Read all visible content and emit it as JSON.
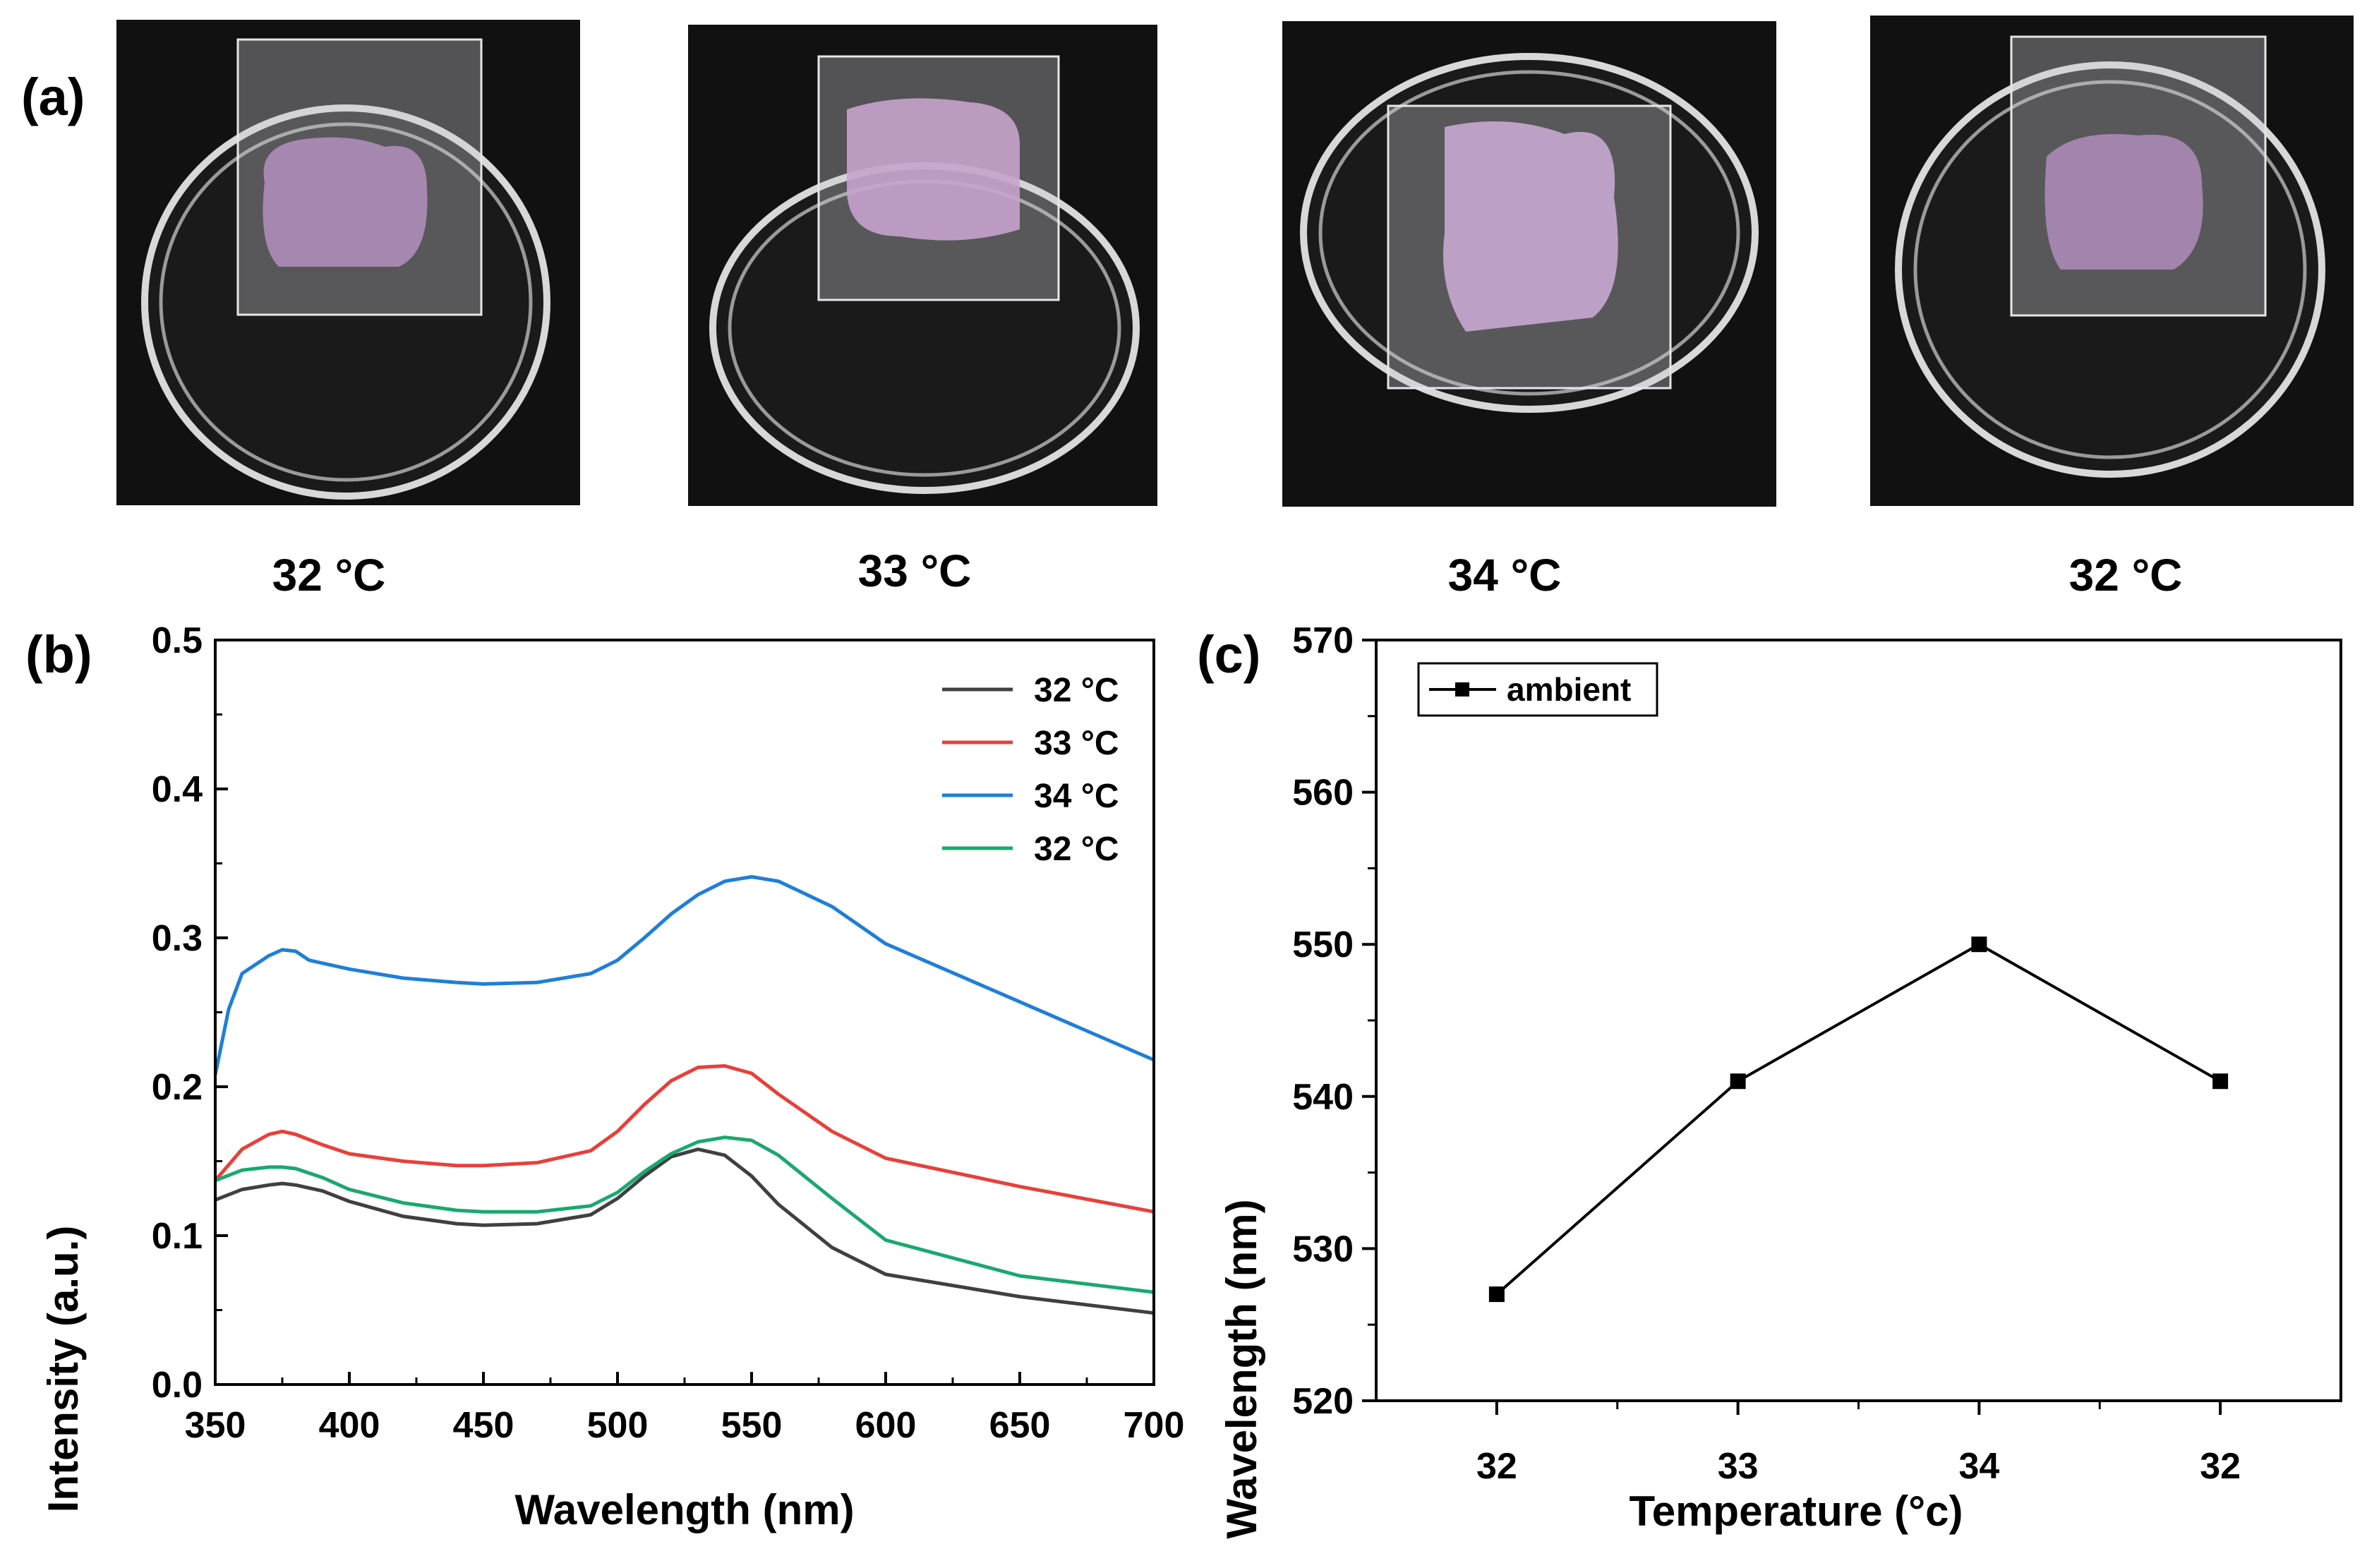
{
  "panel_a": {
    "label": "(a)",
    "photos": [
      {
        "caption": "32 °C"
      },
      {
        "caption": "33 °C"
      },
      {
        "caption": "34 °C"
      },
      {
        "caption": "32 °C"
      }
    ]
  },
  "panel_b": {
    "label": "(b)"
  },
  "panel_c": {
    "label": "(c)"
  },
  "colors": {
    "series_32": "#404040",
    "series_33": "#e8403a",
    "series_34": "#1e7fd8",
    "series_32b": "#1aa86e",
    "line_c": "#000000",
    "film": "#c9a9cf",
    "background_photo": "#111111"
  },
  "chart_data": [
    {
      "type": "line",
      "xlabel": "Wavelength (nm)",
      "ylabel": "Intensity (a.u.)",
      "xlim": [
        350,
        700
      ],
      "ylim": [
        0.0,
        0.5
      ],
      "xticks": [
        "350",
        "400",
        "450",
        "500",
        "550",
        "600",
        "650",
        "700"
      ],
      "yticks": [
        "0.0",
        "0.1",
        "0.2",
        "0.3",
        "0.4",
        "0.5"
      ],
      "legend_position": "top-right",
      "series": [
        {
          "name": "32 °C",
          "x": [
            350,
            360,
            370,
            375,
            380,
            390,
            400,
            420,
            440,
            450,
            470,
            490,
            500,
            510,
            520,
            530,
            540,
            550,
            560,
            580,
            600,
            650,
            700
          ],
          "y": [
            0.124,
            0.131,
            0.134,
            0.135,
            0.134,
            0.13,
            0.123,
            0.113,
            0.108,
            0.107,
            0.108,
            0.114,
            0.125,
            0.14,
            0.153,
            0.158,
            0.154,
            0.14,
            0.121,
            0.092,
            0.074,
            0.059,
            0.048
          ]
        },
        {
          "name": "33 °C",
          "x": [
            350,
            360,
            370,
            375,
            380,
            390,
            400,
            420,
            440,
            450,
            470,
            490,
            500,
            510,
            520,
            530,
            540,
            550,
            560,
            580,
            600,
            650,
            700
          ],
          "y": [
            0.137,
            0.158,
            0.168,
            0.17,
            0.168,
            0.161,
            0.155,
            0.15,
            0.147,
            0.147,
            0.149,
            0.157,
            0.17,
            0.188,
            0.204,
            0.213,
            0.214,
            0.209,
            0.195,
            0.17,
            0.152,
            0.133,
            0.116
          ]
        },
        {
          "name": "34 °C",
          "x": [
            350,
            355,
            360,
            370,
            375,
            380,
            385,
            390,
            400,
            420,
            440,
            450,
            470,
            490,
            500,
            510,
            520,
            530,
            540,
            550,
            560,
            580,
            600,
            650,
            700
          ],
          "y": [
            0.208,
            0.252,
            0.276,
            0.288,
            0.292,
            0.291,
            0.285,
            0.283,
            0.279,
            0.273,
            0.27,
            0.269,
            0.27,
            0.276,
            0.285,
            0.3,
            0.316,
            0.329,
            0.338,
            0.341,
            0.338,
            0.321,
            0.296,
            0.257,
            0.218
          ]
        },
        {
          "name": "32 °C",
          "x": [
            350,
            360,
            370,
            375,
            380,
            390,
            400,
            420,
            440,
            450,
            470,
            490,
            500,
            510,
            520,
            530,
            540,
            550,
            560,
            580,
            600,
            650,
            700
          ],
          "y": [
            0.137,
            0.144,
            0.146,
            0.146,
            0.145,
            0.139,
            0.131,
            0.122,
            0.117,
            0.116,
            0.116,
            0.12,
            0.129,
            0.143,
            0.155,
            0.163,
            0.166,
            0.164,
            0.154,
            0.125,
            0.097,
            0.073,
            0.062
          ]
        }
      ]
    },
    {
      "type": "line",
      "xlabel": "Temperature (°c)",
      "ylabel": "Wavelength (nm)",
      "ylim": [
        520,
        570
      ],
      "categories": [
        "32",
        "33",
        "34",
        "32"
      ],
      "yticks": [
        "520",
        "530",
        "540",
        "550",
        "560",
        "570"
      ],
      "legend_position": "top-left",
      "series": [
        {
          "name": "ambient",
          "values": [
            527,
            541,
            550,
            541
          ]
        }
      ]
    }
  ]
}
